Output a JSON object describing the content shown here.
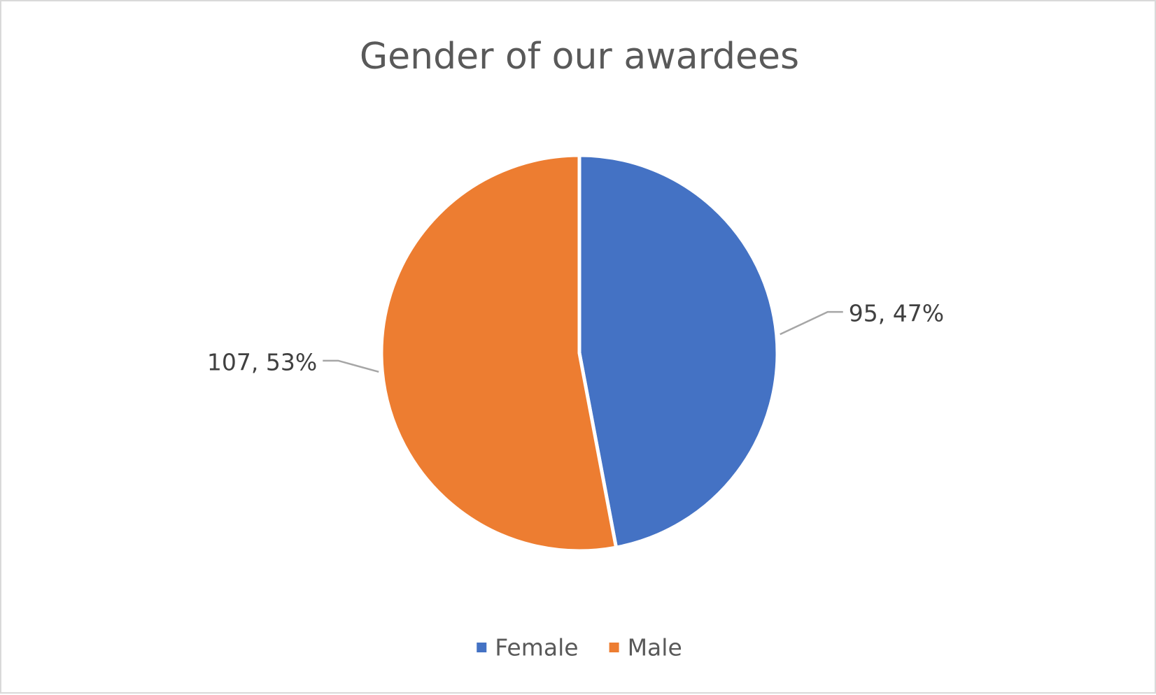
{
  "chart_data": {
    "type": "pie",
    "title": "Gender of our awardees",
    "categories": [
      "Female",
      "Male"
    ],
    "values": [
      95,
      107
    ],
    "percentages": [
      "47%",
      "53%"
    ],
    "data_labels": [
      "95, 47%",
      "107, 53%"
    ],
    "colors": [
      "#4472c4",
      "#ed7d31"
    ],
    "legend_position": "bottom",
    "start_angle": "12 o'clock, clockwise"
  }
}
